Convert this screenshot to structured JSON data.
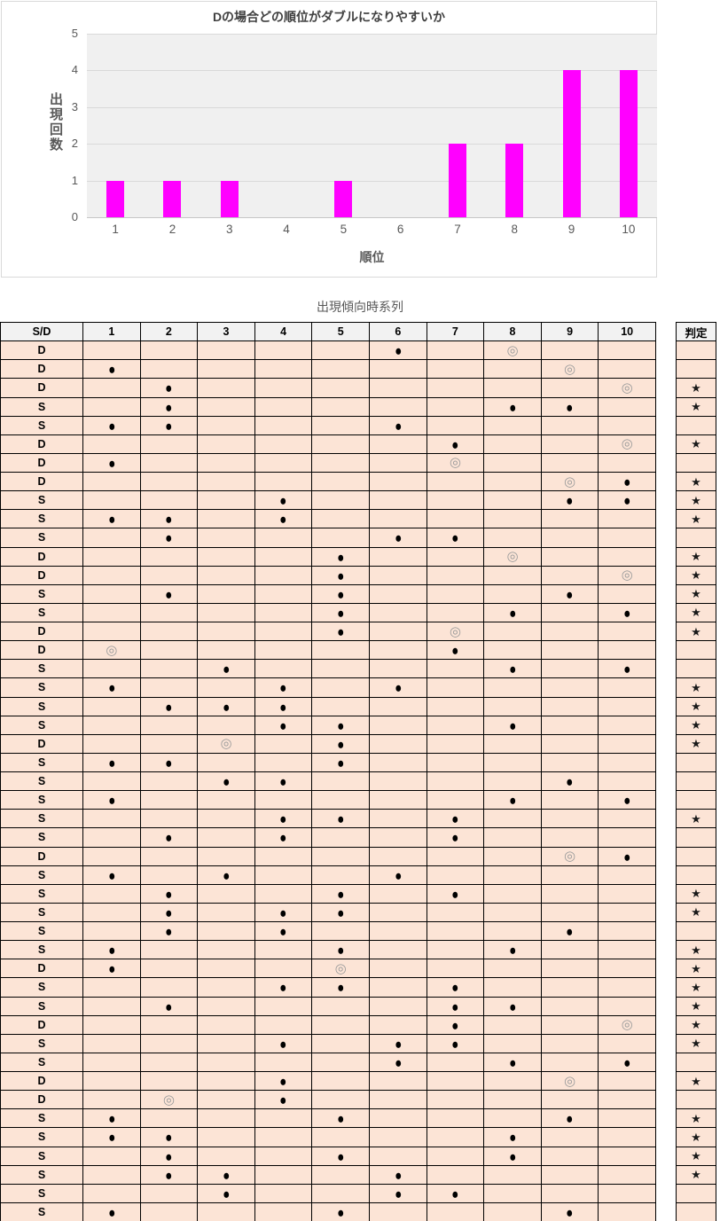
{
  "chart_data": {
    "type": "bar",
    "title": "Dの場合どの順位がダブルになりやすいか",
    "xlabel": "順位",
    "ylabel": "出現回数",
    "categories": [
      "1",
      "2",
      "3",
      "4",
      "5",
      "6",
      "7",
      "8",
      "9",
      "10"
    ],
    "values": [
      1,
      1,
      1,
      0,
      1,
      0,
      2,
      2,
      4,
      4
    ],
    "ylim": [
      0,
      5
    ],
    "yticks": [
      0,
      1,
      2,
      3,
      4,
      5
    ],
    "grid": "horizontal",
    "legend": "none",
    "bar_color": "#FF00FF",
    "plot_bg": "#F0F0F0"
  },
  "table": {
    "title": "出現傾向時系列",
    "corner_header": "S/D",
    "columns": [
      "1",
      "2",
      "3",
      "4",
      "5",
      "6",
      "7",
      "8",
      "9",
      "10"
    ],
    "judgment_header": "判定",
    "symbols": {
      "filled": "●",
      "double": "◎",
      "star": "★"
    },
    "colors": {
      "cell_bg": "#FCE4D6",
      "header_bg": "#F2F2F2",
      "border": "#000000",
      "double_color": "#9B9B9B"
    },
    "rows": [
      {
        "sd": "D",
        "marks": {
          "6": "filled",
          "8": "double"
        },
        "star": false
      },
      {
        "sd": "D",
        "marks": {
          "1": "filled",
          "9": "double"
        },
        "star": false
      },
      {
        "sd": "D",
        "marks": {
          "2": "filled",
          "10": "double"
        },
        "star": true
      },
      {
        "sd": "S",
        "marks": {
          "2": "filled",
          "8": "filled",
          "9": "filled"
        },
        "star": true
      },
      {
        "sd": "S",
        "marks": {
          "1": "filled",
          "2": "filled",
          "6": "filled"
        },
        "star": false
      },
      {
        "sd": "D",
        "marks": {
          "7": "filled",
          "10": "double"
        },
        "star": true
      },
      {
        "sd": "D",
        "marks": {
          "1": "filled",
          "7": "double"
        },
        "star": false
      },
      {
        "sd": "D",
        "marks": {
          "9": "double",
          "10": "filled"
        },
        "star": true
      },
      {
        "sd": "S",
        "marks": {
          "4": "filled",
          "9": "filled",
          "10": "filled"
        },
        "star": true
      },
      {
        "sd": "S",
        "marks": {
          "1": "filled",
          "2": "filled",
          "4": "filled"
        },
        "star": true
      },
      {
        "sd": "S",
        "marks": {
          "2": "filled",
          "6": "filled",
          "7": "filled"
        },
        "star": false
      },
      {
        "sd": "D",
        "marks": {
          "5": "filled",
          "8": "double"
        },
        "star": true
      },
      {
        "sd": "D",
        "marks": {
          "5": "filled",
          "10": "double"
        },
        "star": true
      },
      {
        "sd": "S",
        "marks": {
          "2": "filled",
          "5": "filled",
          "9": "filled"
        },
        "star": true
      },
      {
        "sd": "S",
        "marks": {
          "5": "filled",
          "8": "filled",
          "10": "filled"
        },
        "star": true
      },
      {
        "sd": "D",
        "marks": {
          "5": "filled",
          "7": "double"
        },
        "star": true
      },
      {
        "sd": "D",
        "marks": {
          "1": "double",
          "7": "filled"
        },
        "star": false
      },
      {
        "sd": "S",
        "marks": {
          "3": "filled",
          "8": "filled",
          "10": "filled"
        },
        "star": false
      },
      {
        "sd": "S",
        "marks": {
          "1": "filled",
          "4": "filled",
          "6": "filled"
        },
        "star": true
      },
      {
        "sd": "S",
        "marks": {
          "2": "filled",
          "3": "filled",
          "4": "filled"
        },
        "star": true
      },
      {
        "sd": "S",
        "marks": {
          "4": "filled",
          "5": "filled",
          "8": "filled"
        },
        "star": true
      },
      {
        "sd": "D",
        "marks": {
          "3": "double",
          "5": "filled"
        },
        "star": true
      },
      {
        "sd": "S",
        "marks": {
          "1": "filled",
          "2": "filled",
          "5": "filled"
        },
        "star": false
      },
      {
        "sd": "S",
        "marks": {
          "3": "filled",
          "4": "filled",
          "9": "filled"
        },
        "star": false
      },
      {
        "sd": "S",
        "marks": {
          "1": "filled",
          "8": "filled",
          "10": "filled"
        },
        "star": false
      },
      {
        "sd": "S",
        "marks": {
          "4": "filled",
          "5": "filled",
          "7": "filled"
        },
        "star": true
      },
      {
        "sd": "S",
        "marks": {
          "2": "filled",
          "4": "filled",
          "7": "filled"
        },
        "star": false
      },
      {
        "sd": "D",
        "marks": {
          "9": "double",
          "10": "filled"
        },
        "star": false
      },
      {
        "sd": "S",
        "marks": {
          "1": "filled",
          "3": "filled",
          "6": "filled"
        },
        "star": false
      },
      {
        "sd": "S",
        "marks": {
          "2": "filled",
          "5": "filled",
          "7": "filled"
        },
        "star": true
      },
      {
        "sd": "S",
        "marks": {
          "2": "filled",
          "4": "filled",
          "5": "filled"
        },
        "star": true
      },
      {
        "sd": "S",
        "marks": {
          "2": "filled",
          "4": "filled",
          "9": "filled"
        },
        "star": false
      },
      {
        "sd": "S",
        "marks": {
          "1": "filled",
          "5": "filled",
          "8": "filled"
        },
        "star": true
      },
      {
        "sd": "D",
        "marks": {
          "1": "filled",
          "5": "double"
        },
        "star": true
      },
      {
        "sd": "S",
        "marks": {
          "4": "filled",
          "5": "filled",
          "7": "filled"
        },
        "star": true
      },
      {
        "sd": "S",
        "marks": {
          "2": "filled",
          "7": "filled",
          "8": "filled"
        },
        "star": true
      },
      {
        "sd": "D",
        "marks": {
          "7": "filled",
          "10": "double"
        },
        "star": true
      },
      {
        "sd": "S",
        "marks": {
          "4": "filled",
          "6": "filled",
          "7": "filled"
        },
        "star": true
      },
      {
        "sd": "S",
        "marks": {
          "6": "filled",
          "8": "filled",
          "10": "filled"
        },
        "star": false
      },
      {
        "sd": "D",
        "marks": {
          "4": "filled",
          "9": "double"
        },
        "star": true
      },
      {
        "sd": "D",
        "marks": {
          "2": "double",
          "4": "filled"
        },
        "star": false
      },
      {
        "sd": "S",
        "marks": {
          "1": "filled",
          "5": "filled",
          "9": "filled"
        },
        "star": true
      },
      {
        "sd": "S",
        "marks": {
          "1": "filled",
          "2": "filled",
          "8": "filled"
        },
        "star": true
      },
      {
        "sd": "S",
        "marks": {
          "2": "filled",
          "5": "filled",
          "8": "filled"
        },
        "star": true
      },
      {
        "sd": "S",
        "marks": {
          "2": "filled",
          "3": "filled",
          "6": "filled"
        },
        "star": true
      },
      {
        "sd": "S",
        "marks": {
          "3": "filled",
          "6": "filled",
          "7": "filled"
        },
        "star": false
      },
      {
        "sd": "S",
        "marks": {
          "1": "filled",
          "5": "filled",
          "9": "filled"
        },
        "star": false
      }
    ]
  }
}
